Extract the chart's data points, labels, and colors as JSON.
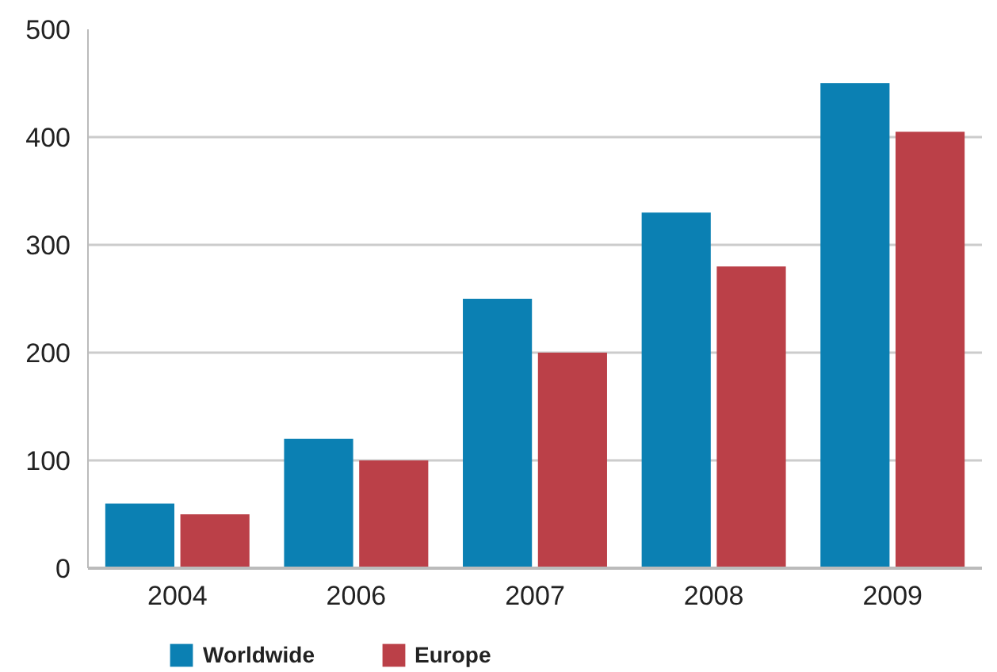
{
  "chart_data": {
    "type": "bar",
    "categories": [
      "2004",
      "2006",
      "2007",
      "2008",
      "2009"
    ],
    "series": [
      {
        "name": "Worldwide",
        "color": "#0b80b3",
        "values": [
          60,
          120,
          250,
          330,
          450
        ]
      },
      {
        "name": "Europe",
        "color": "#bb4048",
        "values": [
          50,
          100,
          200,
          280,
          405
        ]
      }
    ],
    "ylim": [
      0,
      500
    ],
    "yticks": [
      0,
      100,
      200,
      300,
      400,
      500
    ],
    "grid": "y",
    "legend": "bottom"
  }
}
